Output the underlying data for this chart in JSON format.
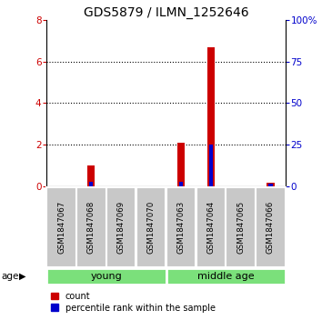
{
  "title": "GDS5879 / ILMN_1252646",
  "samples": [
    "GSM1847067",
    "GSM1847068",
    "GSM1847069",
    "GSM1847070",
    "GSM1847063",
    "GSM1847064",
    "GSM1847065",
    "GSM1847066"
  ],
  "count_values": [
    0,
    1.0,
    0,
    0,
    2.1,
    6.7,
    0,
    0.2
  ],
  "percentile_values_right": [
    0,
    3,
    0,
    0,
    3,
    25,
    0,
    1.5
  ],
  "ylim_left": [
    0,
    8
  ],
  "ylim_right": [
    0,
    100
  ],
  "yticks_left": [
    0,
    2,
    4,
    6,
    8
  ],
  "yticks_right": [
    0,
    25,
    50,
    75,
    100
  ],
  "ytick_labels_right": [
    "0",
    "25",
    "50",
    "75",
    "100%"
  ],
  "bar_color_count": "#cc0000",
  "bar_color_percentile": "#0000cc",
  "sample_box_color": "#c8c8c8",
  "green_color": "#7be07b",
  "age_label": "age",
  "legend_count": "count",
  "legend_percentile": "percentile rank within the sample",
  "title_fontsize": 10,
  "tick_fontsize": 7.5
}
